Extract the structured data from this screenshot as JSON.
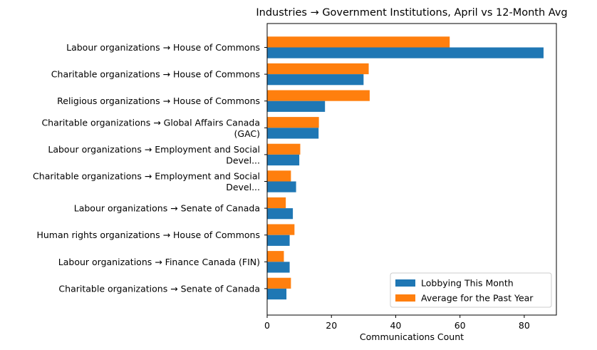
{
  "chart_data": {
    "type": "bar",
    "orientation": "horizontal",
    "title": "Industries → Government Institutions, April vs 12-Month Avg",
    "xlabel": "Communications Count",
    "ylabel": "",
    "xlim": [
      0,
      90
    ],
    "xticks": [
      0,
      20,
      40,
      60,
      80
    ],
    "grid": false,
    "legend_position": "lower-right",
    "categories": [
      [
        "Labour organizations → House of Commons"
      ],
      [
        "Charitable organizations → House of Commons"
      ],
      [
        "Religious organizations → House of Commons"
      ],
      [
        "Charitable organizations → Global Affairs Canada",
        "(GAC)"
      ],
      [
        "Labour organizations → Employment and Social",
        "Devel..."
      ],
      [
        "Charitable organizations → Employment and Social",
        "Devel..."
      ],
      [
        "Labour organizations → Senate of Canada"
      ],
      [
        "Human rights organizations → House of Commons"
      ],
      [
        "Labour organizations → Finance Canada (FIN)"
      ],
      [
        "Charitable organizations → Senate of Canada"
      ]
    ],
    "series": [
      {
        "name": "Lobbying This Month",
        "color": "#1f77b4",
        "values": [
          86,
          30,
          18,
          16,
          10,
          9,
          8,
          7,
          7,
          6
        ]
      },
      {
        "name": "Average for the Past Year",
        "color": "#ff7f0e",
        "values": [
          56.8,
          31.6,
          31.9,
          16.1,
          10.3,
          7.4,
          5.8,
          8.5,
          5.2,
          7.4
        ]
      }
    ]
  }
}
